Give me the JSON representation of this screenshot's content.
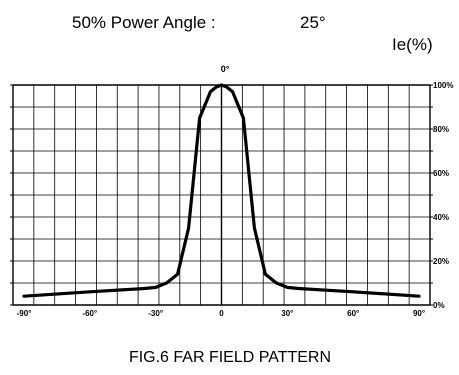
{
  "header": {
    "label": "50% Power Angle :",
    "value": "25°"
  },
  "figure_caption": "FIG.6 FAR FIELD PATTERN",
  "chart_data": {
    "type": "line",
    "title": "",
    "ylabel": "Ie(%)",
    "center_label": "0°",
    "xlim": [
      -95,
      95
    ],
    "ylim": [
      0,
      100
    ],
    "grid": true,
    "x_tick_values": [
      -90,
      -60,
      -30,
      0,
      30,
      60,
      90
    ],
    "x_tick_labels": [
      "-90°",
      "-60°",
      "-30°",
      "0",
      "30°",
      "60°",
      "90°"
    ],
    "y_tick_values": [
      0,
      20,
      40,
      60,
      80,
      100
    ],
    "y_tick_labels": [
      "0%",
      "20%",
      "40%",
      "60%",
      "80%",
      "100%"
    ],
    "series": [
      {
        "x": [
          -90,
          -60,
          -35,
          -30,
          -25,
          -20,
          -15,
          -12.5,
          -10,
          -5,
          -2.5,
          0,
          2.5,
          5,
          10,
          12.5,
          15,
          20,
          25,
          30,
          35,
          60,
          90
        ],
        "y": [
          4,
          6,
          7.5,
          8,
          10,
          14,
          35,
          60,
          85,
          97,
          99,
          100,
          99,
          97,
          85,
          60,
          35,
          14,
          10,
          8,
          7.5,
          6,
          4
        ]
      }
    ]
  }
}
